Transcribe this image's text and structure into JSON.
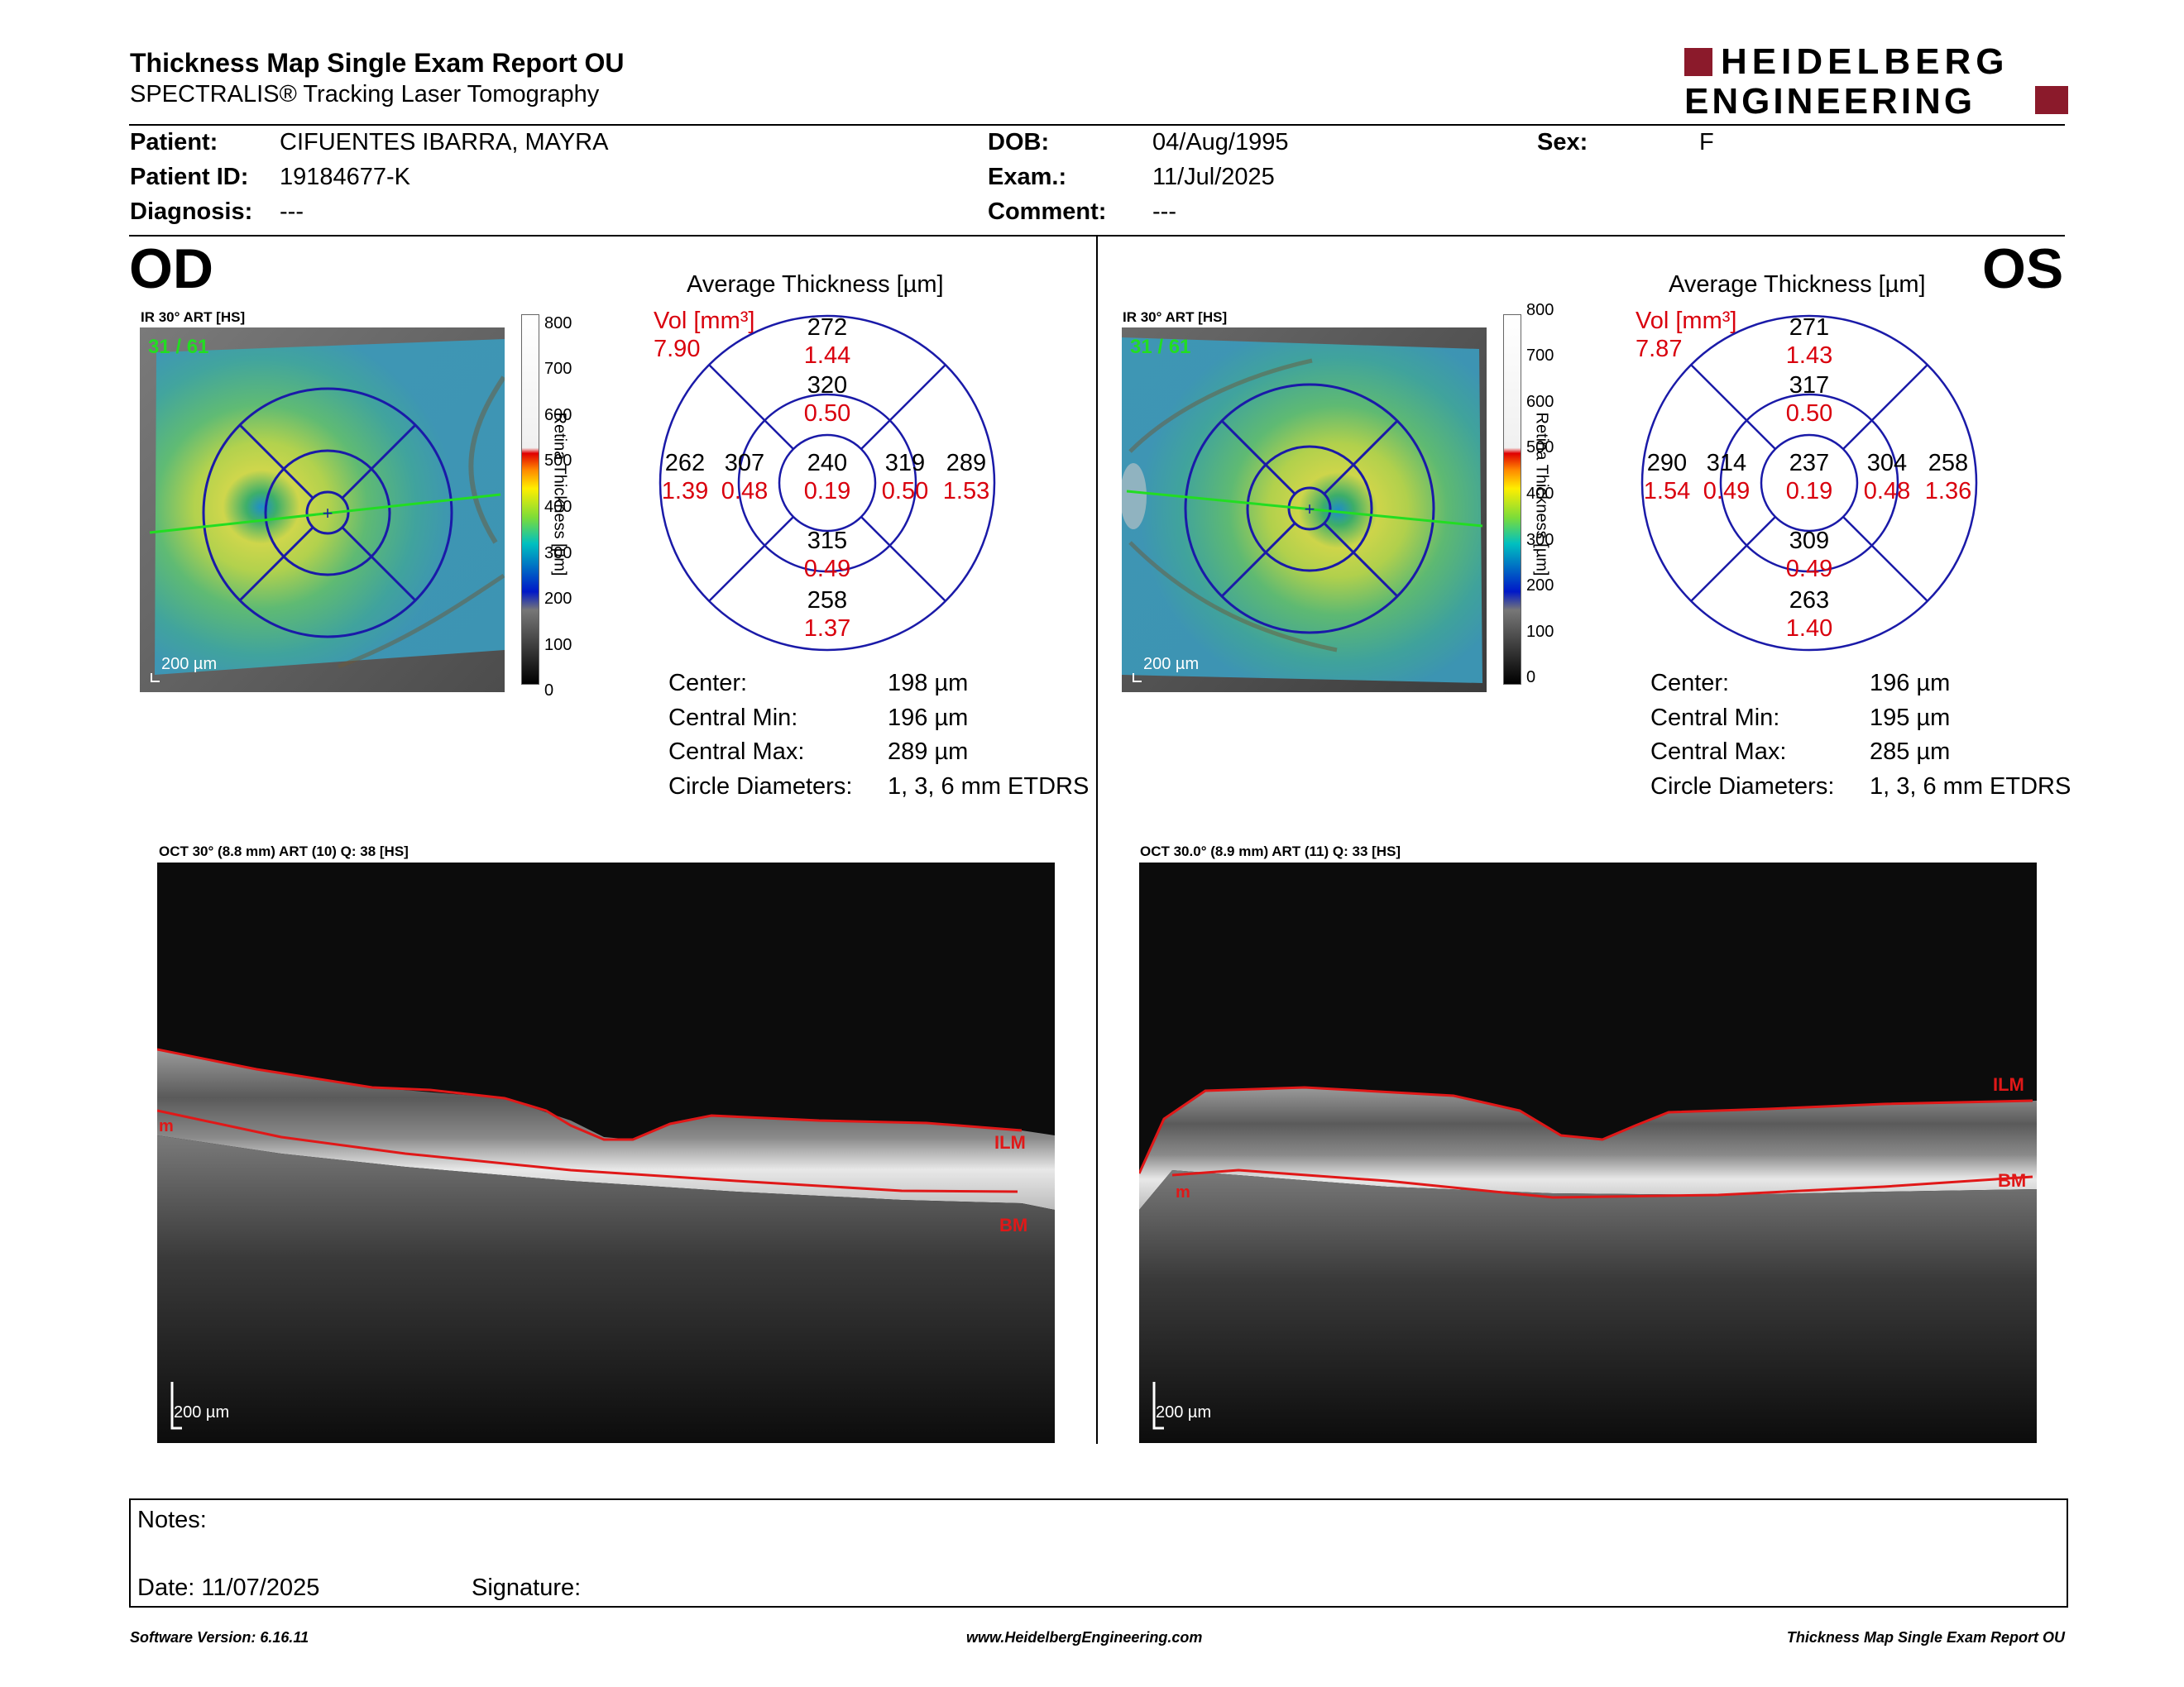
{
  "header": {
    "title": "Thickness Map Single Exam Report OU",
    "subtitle": "SPECTRALIS® Tracking Laser Tomography",
    "logo_line1": "HEIDELBERG",
    "logo_line2": "ENGINEERING",
    "logo_color": "#8b1a2b"
  },
  "patient": {
    "patient_label": "Patient:",
    "patient_value": "CIFUENTES IBARRA, MAYRA",
    "id_label": "Patient ID:",
    "id_value": "19184677-K",
    "diagnosis_label": "Diagnosis:",
    "diagnosis_value": "---",
    "dob_label": "DOB:",
    "dob_value": "04/Aug/1995",
    "exam_label": "Exam.:",
    "exam_value": "11/Jul/2025",
    "comment_label": "Comment:",
    "comment_value": "---",
    "sex_label": "Sex:",
    "sex_value": "F"
  },
  "scale": {
    "ticks": [
      "800",
      "700",
      "600",
      "500",
      "400",
      "300",
      "200",
      "100",
      "0"
    ],
    "label": "Retina Thickness [µm]"
  },
  "od": {
    "eye": "OD",
    "ir_label": "IR 30° ART [HS]",
    "frame": "31 / 61",
    "scale_bar": "200 µm",
    "avg_title": "Average Thickness [µm]",
    "vol_label": "Vol [mm³]",
    "vol_value": "7.90",
    "sectors": {
      "outer_sup": "272",
      "outer_sup_vol": "1.44",
      "inner_sup": "320",
      "inner_sup_vol": "0.50",
      "outer_left": "262",
      "outer_left_vol": "1.39",
      "inner_left": "307",
      "inner_left_vol": "0.48",
      "center": "240",
      "center_vol": "0.19",
      "inner_right": "319",
      "inner_right_vol": "0.50",
      "outer_right": "289",
      "outer_right_vol": "1.53",
      "inner_inf": "315",
      "inner_inf_vol": "0.49",
      "outer_inf": "258",
      "outer_inf_vol": "1.37"
    },
    "stats": {
      "center_label": "Center:",
      "center_value": "198 µm",
      "min_label": "Central Min:",
      "min_value": "196 µm",
      "max_label": "Central Max:",
      "max_value": "289 µm",
      "diam_label": "Circle Diameters:",
      "diam_value": "1, 3, 6 mm ETDRS"
    },
    "oct_label": "OCT 30° (8.8 mm) ART (10) Q: 38 [HS]",
    "oct_scale": "200 µm",
    "ilm": "ILM",
    "bm": "BM",
    "side_mark": "m"
  },
  "os": {
    "eye": "OS",
    "ir_label": "IR 30° ART [HS]",
    "frame": "31 / 61",
    "scale_bar": "200 µm",
    "avg_title": "Average Thickness [µm]",
    "vol_label": "Vol [mm³]",
    "vol_value": "7.87",
    "sectors": {
      "outer_sup": "271",
      "outer_sup_vol": "1.43",
      "inner_sup": "317",
      "inner_sup_vol": "0.50",
      "outer_left": "290",
      "outer_left_vol": "1.54",
      "inner_left": "314",
      "inner_left_vol": "0.49",
      "center": "237",
      "center_vol": "0.19",
      "inner_right": "304",
      "inner_right_vol": "0.48",
      "outer_right": "258",
      "outer_right_vol": "1.36",
      "inner_inf": "309",
      "inner_inf_vol": "0.49",
      "outer_inf": "263",
      "outer_inf_vol": "1.40"
    },
    "stats": {
      "center_label": "Center:",
      "center_value": "196 µm",
      "min_label": "Central Min:",
      "min_value": "195 µm",
      "max_label": "Central Max:",
      "max_value": "285 µm",
      "diam_label": "Circle Diameters:",
      "diam_value": "1, 3, 6 mm ETDRS"
    },
    "oct_label": "OCT 30.0° (8.9 mm) ART (11) Q: 33 [HS]",
    "oct_scale": "200 µm",
    "ilm": "ILM",
    "bm": "BM",
    "side_mark": "m"
  },
  "notes": {
    "notes_label": "Notes:",
    "date_label": "Date: 11/07/2025",
    "signature_label": "Signature:"
  },
  "footer": {
    "software": "Software Version: 6.16.11",
    "website": "www.HeidelbergEngineering.com",
    "report_name": "Thickness Map Single Exam Report OU"
  },
  "colors": {
    "vol_red": "#d9000d",
    "grid_blue": "#1a1aa8",
    "oct_red": "#e01818",
    "scan_green": "#22dd22"
  }
}
